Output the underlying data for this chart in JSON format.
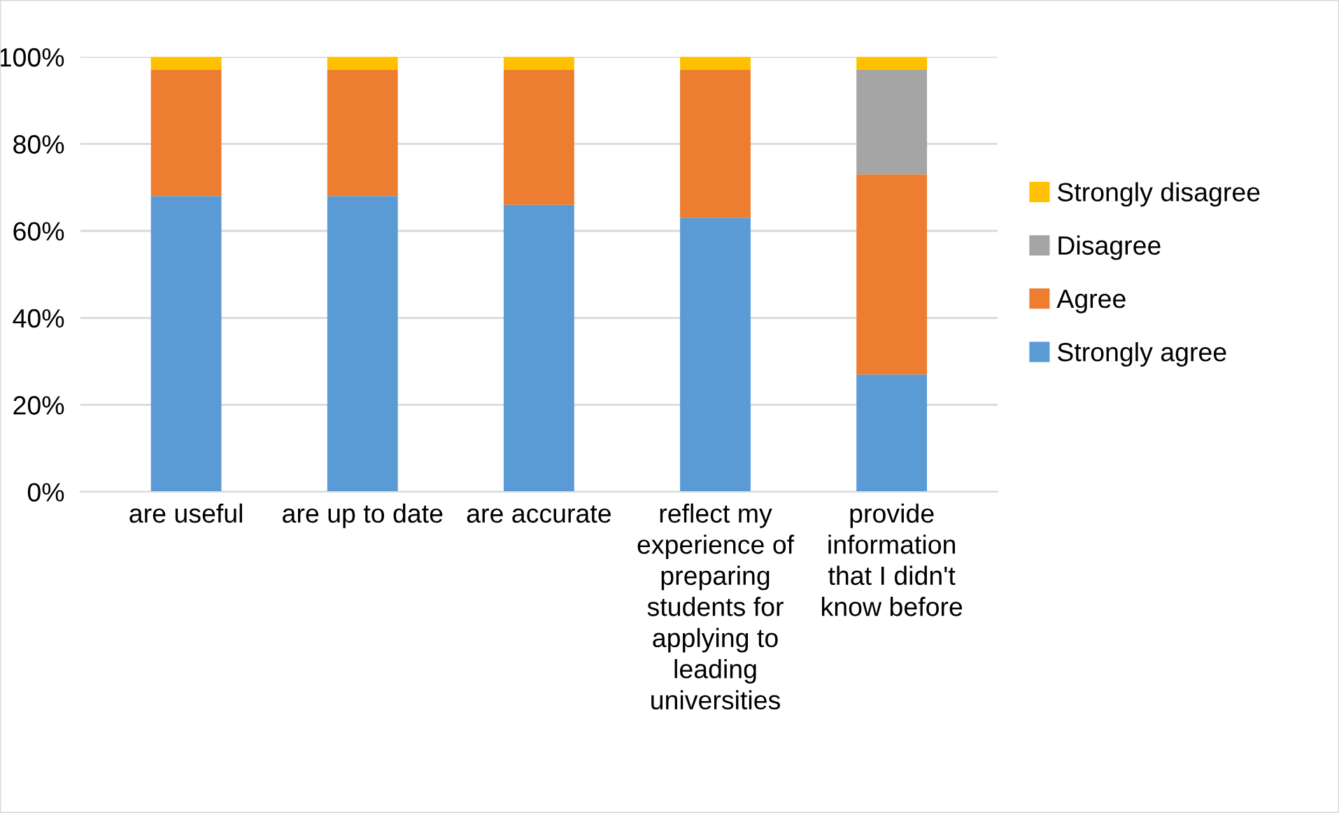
{
  "chart_data": {
    "type": "bar",
    "stacked": true,
    "categories": [
      "are useful",
      "are up to date",
      "are accurate",
      "reflect my experience of preparing students for applying to leading universities",
      "provide information that I didn't know before"
    ],
    "series": [
      {
        "name": "Strongly agree",
        "color": "#5b9bd5",
        "values": [
          68,
          68,
          66,
          63,
          27
        ]
      },
      {
        "name": "Agree",
        "color": "#ed7d31",
        "values": [
          29,
          29,
          31,
          34,
          46
        ]
      },
      {
        "name": "Disagree",
        "color": "#a5a5a5",
        "values": [
          0,
          0,
          0,
          0,
          24
        ]
      },
      {
        "name": "Strongly disagree",
        "color": "#ffc000",
        "values": [
          3,
          3,
          3,
          3,
          3
        ]
      }
    ],
    "ylim": [
      0,
      100
    ],
    "yticks": [
      {
        "value": 0,
        "label": "0%"
      },
      {
        "value": 20,
        "label": "20%"
      },
      {
        "value": 40,
        "label": "40%"
      },
      {
        "value": 60,
        "label": "60%"
      },
      {
        "value": 80,
        "label": "80%"
      },
      {
        "value": 100,
        "label": "100%"
      }
    ],
    "grid": "y",
    "legend": "right"
  }
}
